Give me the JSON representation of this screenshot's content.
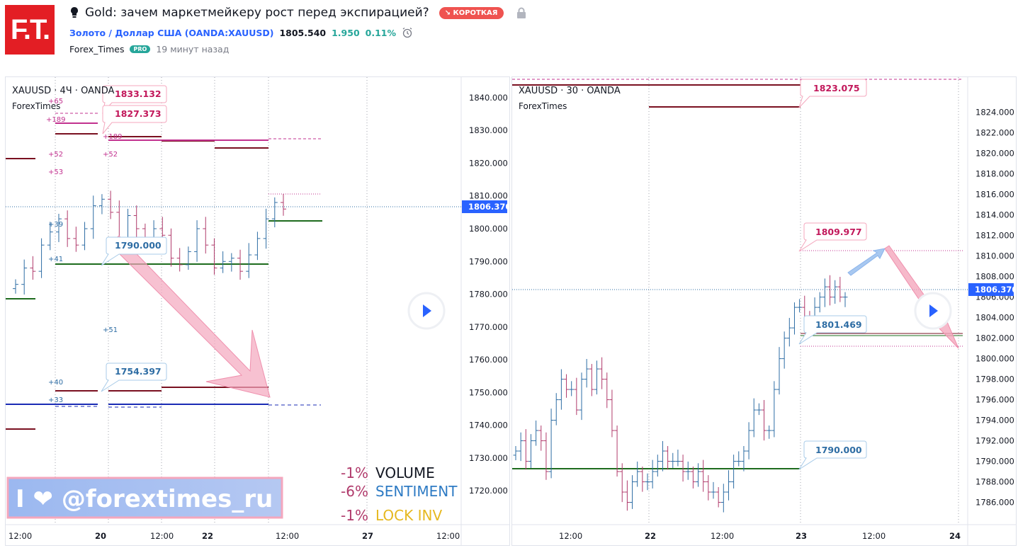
{
  "logo_text": "F.T.",
  "idea": {
    "title": "Gold: зачем маркетмейкеру рост перед экспирацией?",
    "badge": "↘ КОРОТКАЯ",
    "symbol": "Золото / Доллар США (OANDA:XAUUSD)",
    "price": "1805.540",
    "change": "1.950",
    "change_pct": "0.11%",
    "author": "Forex_Times",
    "author_badge": "PRO",
    "published": "19 минут назад"
  },
  "colors": {
    "up": "#2e6da4",
    "down": "#b03a6b",
    "accent": "#2962ff",
    "short": "#ef5350"
  },
  "chart_data": [
    {
      "type": "candlestick",
      "title": "XAUUSD · 4Ч · OANDA",
      "subtitle": "ForexTimes",
      "ylim": [
        1714,
        1843
      ],
      "y_ticks": [
        "1840.000",
        "1830.000",
        "1820.000",
        "1810.000",
        "1800.000",
        "1790.000",
        "1780.000",
        "1770.000",
        "1760.000",
        "1750.000",
        "1740.000",
        "1730.000",
        "1720.000"
      ],
      "x_ticks": [
        "12:00",
        "20",
        "12:00",
        "22",
        "12:00",
        "27",
        "12:00"
      ],
      "last_price": "1806.370",
      "callouts": [
        "1833.132",
        "1827.373",
        "1790.000",
        "1754.397"
      ],
      "level_marks": [
        "+65",
        "+189",
        "+189",
        "+52",
        "+52",
        "+53",
        "+39",
        "+41",
        "+51",
        "+40",
        "+33"
      ],
      "stats": [
        {
          "pct": "-1%",
          "label": "VOLUME"
        },
        {
          "pct": "-6%",
          "label": "SENTIMENT"
        },
        {
          "pct": "-1%",
          "label": "LOCK INV"
        }
      ],
      "banner": "I ❤ @forextimes_ru",
      "closes": [
        1783,
        1788,
        1787,
        1795,
        1799,
        1803,
        1797,
        1795,
        1800,
        1807,
        1809,
        1805,
        1796,
        1804,
        1800,
        1797,
        1800,
        1798,
        1791,
        1789,
        1793,
        1800,
        1795,
        1788,
        1790,
        1791,
        1787,
        1792,
        1797,
        1803,
        1808,
        1806
      ]
    },
    {
      "type": "candlestick",
      "title": "XAUUSD · 30 · OANDA",
      "subtitle": "ForexTimes",
      "ylim": [
        1785,
        1825.5
      ],
      "y_ticks": [
        "1824.000",
        "1822.000",
        "1820.000",
        "1818.000",
        "1816.000",
        "1814.000",
        "1812.000",
        "1810.000",
        "1808.000",
        "1806.000",
        "1804.000",
        "1802.000",
        "1800.000",
        "1798.000",
        "1796.000",
        "1794.000",
        "1792.000",
        "1790.000",
        "1788.000",
        "1786.000"
      ],
      "x_ticks": [
        "12:00",
        "22",
        "12:00",
        "23",
        "12:00",
        "24"
      ],
      "last_price": "1806.370",
      "callouts": [
        "1823.075",
        "1809.977",
        "1801.469",
        "1790.000"
      ],
      "closes": [
        1791,
        1792,
        1790,
        1792,
        1793,
        1792,
        1789,
        1794,
        1796,
        1798,
        1797,
        1797,
        1795,
        1798,
        1799,
        1797,
        1799,
        1798,
        1796,
        1793,
        1789,
        1787,
        1786,
        1788,
        1789,
        1788,
        1788,
        1789,
        1790,
        1791,
        1790,
        1790,
        1790,
        1789,
        1789,
        1788,
        1789,
        1788,
        1787,
        1787,
        1786,
        1787,
        1788,
        1790,
        1790,
        1791,
        1793,
        1795,
        1795,
        1793,
        1793,
        1797,
        1800,
        1802,
        1803,
        1805,
        1805,
        1804,
        1803,
        1805,
        1806,
        1807,
        1806,
        1807,
        1806,
        1806
      ]
    }
  ]
}
